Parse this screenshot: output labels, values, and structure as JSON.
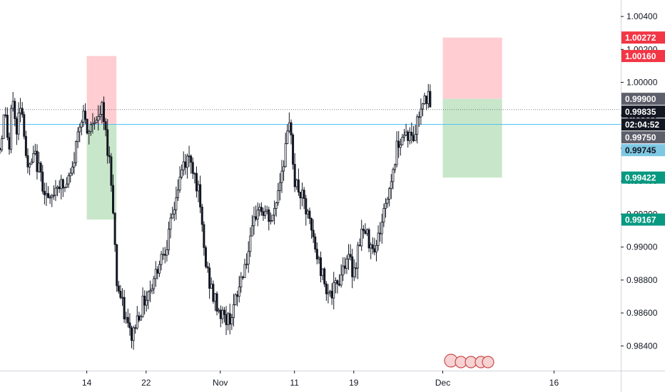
{
  "chart_data": {
    "type": "candlestick",
    "title": "",
    "xlabel": "",
    "ylabel": "",
    "ylim": [
      0.9825,
      1.005
    ],
    "y_ticks": [
      "1.00400",
      "1.00200",
      "1.00000",
      "0.99800",
      "0.99600",
      "0.99400",
      "0.99200",
      "0.99000",
      "0.98800",
      "0.98600",
      "0.98400"
    ],
    "x_ticks": [
      {
        "label": "14",
        "day": 14
      },
      {
        "label": "22",
        "day": 22
      },
      {
        "label": "Nov",
        "day": 32
      },
      {
        "label": "11",
        "day": 42
      },
      {
        "label": "19",
        "day": 50
      },
      {
        "label": "Dec",
        "day": 62
      },
      {
        "label": "16",
        "day": 77
      }
    ],
    "x_range_days": [
      2.3,
      86
    ],
    "grid": false,
    "colors": {
      "candle": "#131722",
      "stop_zone": "#ffcdd2",
      "target_zone": "#c8e6c9",
      "current_line": "#787b86",
      "entry_line": "#4fc3f7",
      "badge_red": "#f23645",
      "badge_green": "#089981",
      "badge_dark": "#131722",
      "badge_gray": "#5d606b",
      "badge_blue": "#7ec8e3"
    },
    "close_path": [
      [
        2.3,
        0.996
      ],
      [
        3.0,
        0.9985
      ],
      [
        3.5,
        0.9955
      ],
      [
        4.0,
        0.9995
      ],
      [
        4.5,
        0.9965
      ],
      [
        5.0,
        0.999
      ],
      [
        5.5,
        0.9975
      ],
      [
        6.0,
        0.9945
      ],
      [
        7.0,
        0.9955
      ],
      [
        8.0,
        0.994
      ],
      [
        9.0,
        0.9925
      ],
      [
        10.0,
        0.994
      ],
      [
        11.0,
        0.9935
      ],
      [
        12.0,
        0.9945
      ],
      [
        13.0,
        0.9975
      ],
      [
        13.5,
        0.9985
      ],
      [
        14.0,
        0.9965
      ],
      [
        15.0,
        0.998
      ],
      [
        15.5,
        0.9975
      ],
      [
        16.0,
        0.9985
      ],
      [
        16.5,
        0.997
      ],
      [
        17.0,
        0.9955
      ],
      [
        17.5,
        0.993
      ],
      [
        18.0,
        0.988
      ],
      [
        18.5,
        0.987
      ],
      [
        19.0,
        0.986
      ],
      [
        20.0,
        0.9845
      ],
      [
        21.0,
        0.986
      ],
      [
        22.0,
        0.987
      ],
      [
        23.0,
        0.988
      ],
      [
        24.0,
        0.9895
      ],
      [
        25.0,
        0.9905
      ],
      [
        26.0,
        0.993
      ],
      [
        27.0,
        0.995
      ],
      [
        28.0,
        0.9955
      ],
      [
        29.0,
        0.9935
      ],
      [
        30.0,
        0.989
      ],
      [
        31.0,
        0.987
      ],
      [
        32.0,
        0.986
      ],
      [
        33.0,
        0.9855
      ],
      [
        34.0,
        0.9865
      ],
      [
        35.0,
        0.9885
      ],
      [
        36.0,
        0.99
      ],
      [
        37.0,
        0.9925
      ],
      [
        38.0,
        0.992
      ],
      [
        39.0,
        0.9915
      ],
      [
        40.0,
        0.994
      ],
      [
        41.0,
        0.9965
      ],
      [
        41.5,
        0.9975
      ],
      [
        42.0,
        0.994
      ],
      [
        43.0,
        0.993
      ],
      [
        44.0,
        0.9915
      ],
      [
        45.0,
        0.9895
      ],
      [
        46.0,
        0.988
      ],
      [
        47.0,
        0.987
      ],
      [
        48.0,
        0.988
      ],
      [
        49.0,
        0.9895
      ],
      [
        50.0,
        0.9885
      ],
      [
        51.0,
        0.991
      ],
      [
        52.0,
        0.9905
      ],
      [
        53.0,
        0.99
      ],
      [
        54.0,
        0.992
      ],
      [
        55.0,
        0.994
      ],
      [
        56.0,
        0.9965
      ],
      [
        57.0,
        0.997
      ],
      [
        58.0,
        0.9965
      ],
      [
        59.0,
        0.9985
      ],
      [
        59.5,
        0.9995
      ],
      [
        60.0,
        0.999
      ],
      [
        60.5,
        0.99835
      ]
    ],
    "position_zones": [
      {
        "name": "left-stop",
        "day_start": 14,
        "day_end": 18,
        "price_low": 0.99745,
        "price_high": 1.0016,
        "kind": "stop"
      },
      {
        "name": "left-target",
        "day_start": 14,
        "day_end": 18,
        "price_low": 0.99167,
        "price_high": 0.99745,
        "kind": "target"
      },
      {
        "name": "right-stop",
        "day_start": 62,
        "day_end": 70,
        "price_low": 0.999,
        "price_high": 1.00272,
        "kind": "stop"
      },
      {
        "name": "right-target",
        "day_start": 62,
        "day_end": 70,
        "price_low": 0.99422,
        "price_high": 0.999,
        "kind": "target"
      }
    ],
    "horizontal_lines": [
      {
        "name": "current-price-line",
        "price": 0.99835,
        "style": "dotted",
        "color_key": "current_line"
      },
      {
        "name": "entry-price-line",
        "price": 0.99745,
        "style": "solid",
        "color_key": "entry_line"
      }
    ],
    "price_badges": [
      {
        "name": "badge-1.00272",
        "label": "1.00272",
        "price": 1.00272,
        "color_key": "badge_red"
      },
      {
        "name": "badge-1.00160",
        "label": "1.00160",
        "price": 1.0016,
        "color_key": "badge_red"
      },
      {
        "name": "badge-0.99900",
        "label": "0.99900",
        "price": 0.999,
        "color_key": "badge_gray"
      },
      {
        "name": "badge-0.99835",
        "label": "0.99835",
        "price": 0.99835,
        "color_key": "badge_dark"
      },
      {
        "name": "badge-countdown",
        "label": "02:04:52",
        "price": 0.99788,
        "color_key": "badge_dark"
      },
      {
        "name": "badge-0.99750",
        "label": "0.99750",
        "price": 0.9975,
        "color_key": "badge_gray"
      },
      {
        "name": "badge-0.99745",
        "label": "0.99745",
        "price": 0.99745,
        "color_key": "badge_blue"
      },
      {
        "name": "badge-0.99422",
        "label": "0.99422",
        "price": 0.99422,
        "color_key": "badge_green"
      },
      {
        "name": "badge-0.99167",
        "label": "0.99167",
        "price": 0.99167,
        "color_key": "badge_green"
      }
    ]
  }
}
